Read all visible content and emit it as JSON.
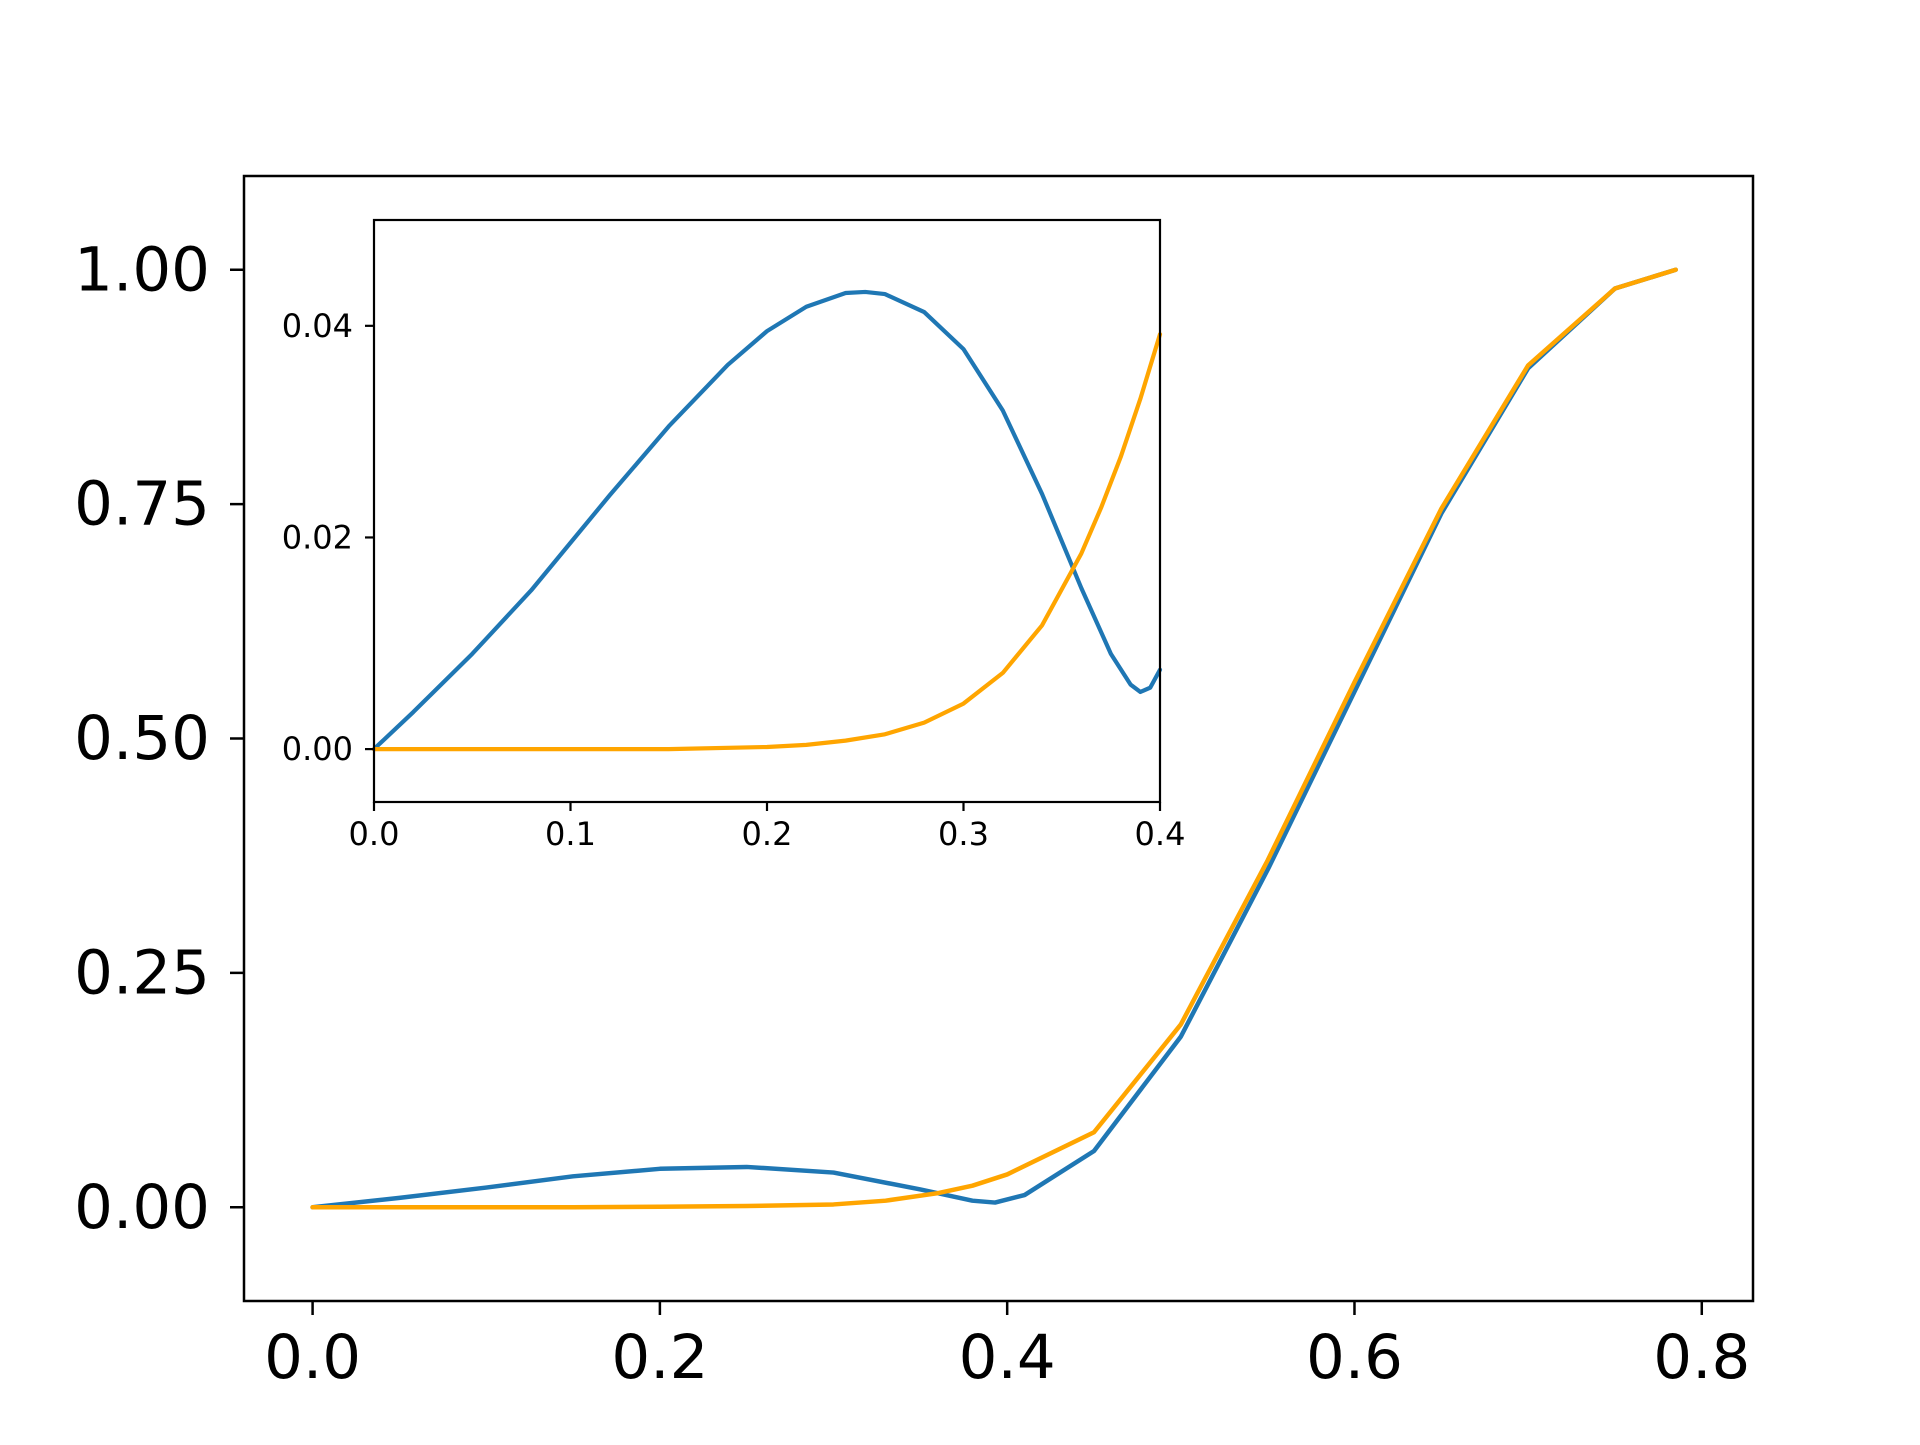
{
  "chart_data": [
    {
      "name": "main-plot",
      "type": "line",
      "title": "",
      "xlabel": "",
      "ylabel": "",
      "xlim": [
        -0.0395,
        0.8295
      ],
      "ylim": [
        -0.1,
        1.1
      ],
      "xticks": [
        0.0,
        0.2,
        0.4,
        0.6,
        0.8
      ],
      "xtick_labels": [
        "0.0",
        "0.2",
        "0.4",
        "0.6",
        "0.8"
      ],
      "yticks": [
        0.0,
        0.25,
        0.5,
        0.75,
        1.0
      ],
      "ytick_labels": [
        "0.00",
        "0.25",
        "0.50",
        "0.75",
        "1.00"
      ],
      "grid": false,
      "legend": "none",
      "series": [
        {
          "color": "#1f77b4",
          "x": [
            0.0,
            0.05,
            0.1,
            0.15,
            0.2,
            0.25,
            0.3,
            0.35,
            0.38,
            0.393,
            0.41,
            0.45,
            0.5,
            0.55,
            0.6,
            0.65,
            0.7,
            0.75,
            0.785
          ],
          "y": [
            0.0,
            0.01,
            0.021,
            0.033,
            0.041,
            0.043,
            0.037,
            0.019,
            0.007,
            0.005,
            0.013,
            0.06,
            0.182,
            0.36,
            0.55,
            0.74,
            0.895,
            0.98,
            1.0
          ]
        },
        {
          "color": "#ffa500",
          "x": [
            0.0,
            0.05,
            0.1,
            0.15,
            0.2,
            0.25,
            0.3,
            0.33,
            0.36,
            0.38,
            0.4,
            0.45,
            0.5,
            0.55,
            0.6,
            0.65,
            0.7,
            0.75,
            0.785
          ],
          "y": [
            0.0,
            0.0,
            0.0,
            0.0,
            0.0005,
            0.0013,
            0.003,
            0.007,
            0.015,
            0.023,
            0.035,
            0.08,
            0.195,
            0.37,
            0.56,
            0.745,
            0.898,
            0.98,
            1.0
          ]
        }
      ]
    },
    {
      "name": "inset-plot",
      "type": "line",
      "title": "",
      "xlabel": "",
      "ylabel": "",
      "xlim": [
        0.0,
        0.4
      ],
      "ylim": [
        -0.005,
        0.05
      ],
      "xticks": [
        0.0,
        0.1,
        0.2,
        0.3,
        0.4
      ],
      "xtick_labels": [
        "0.0",
        "0.1",
        "0.2",
        "0.3",
        "0.4"
      ],
      "yticks": [
        0.0,
        0.02,
        0.04
      ],
      "ytick_labels": [
        "0.00",
        "0.02",
        "0.04"
      ],
      "grid": false,
      "legend": "none",
      "series": [
        {
          "color": "#1f77b4",
          "x": [
            0.0,
            0.02,
            0.05,
            0.08,
            0.1,
            0.12,
            0.15,
            0.18,
            0.2,
            0.22,
            0.24,
            0.25,
            0.26,
            0.28,
            0.3,
            0.32,
            0.34,
            0.36,
            0.375,
            0.385,
            0.39,
            0.395,
            0.4
          ],
          "y": [
            0.0,
            0.0035,
            0.009,
            0.015,
            0.0195,
            0.024,
            0.0305,
            0.0363,
            0.0395,
            0.0418,
            0.0431,
            0.0432,
            0.043,
            0.0413,
            0.0378,
            0.032,
            0.0241,
            0.0152,
            0.009,
            0.0061,
            0.0054,
            0.0058,
            0.0075
          ]
        },
        {
          "color": "#ffa500",
          "x": [
            0.0,
            0.05,
            0.1,
            0.15,
            0.2,
            0.22,
            0.24,
            0.26,
            0.28,
            0.3,
            0.32,
            0.34,
            0.36,
            0.37,
            0.38,
            0.39,
            0.4
          ],
          "y": [
            0.0,
            0.0,
            0.0,
            0.0,
            0.0002,
            0.0004,
            0.0008,
            0.0014,
            0.0025,
            0.0043,
            0.0072,
            0.0117,
            0.0185,
            0.0228,
            0.0276,
            0.0331,
            0.0392
          ]
        }
      ]
    }
  ]
}
